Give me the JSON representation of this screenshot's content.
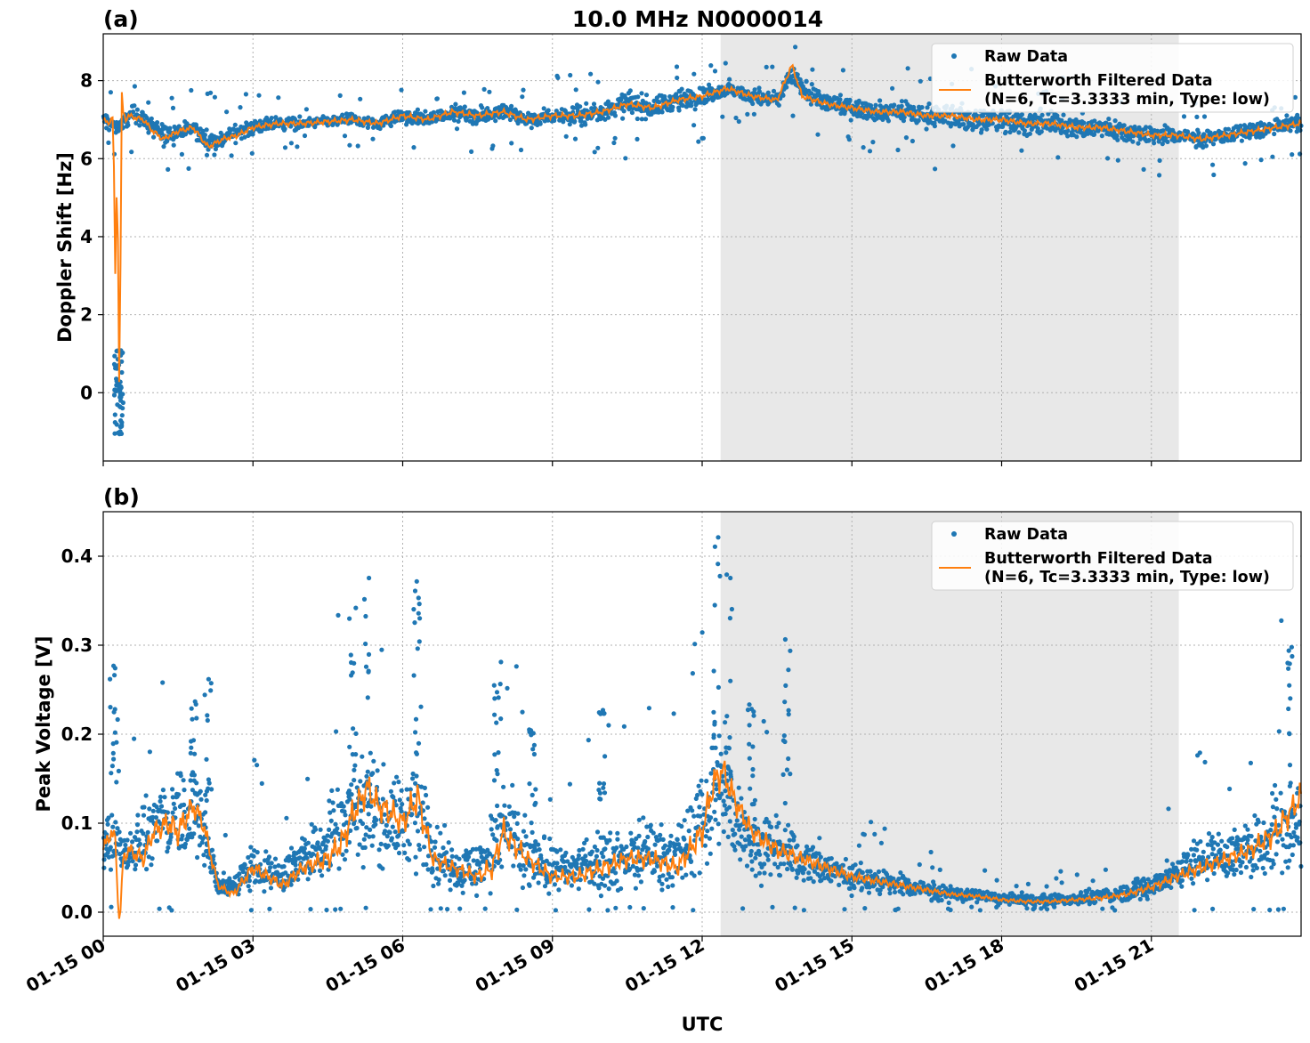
{
  "figure": {
    "title": "10.0 MHz N0000014",
    "xlabel": "UTC"
  },
  "colors": {
    "raw": "#1f77b4",
    "filtered": "#ff7f0e",
    "night_shade": "#e8e8e8"
  },
  "x_ticks": [
    "01-15 00",
    "01-15 03",
    "01-15 06",
    "01-15 09",
    "01-15 12",
    "01-15 15",
    "01-15 18",
    "01-15 21"
  ],
  "chart_data": [
    {
      "type": "scatter",
      "panel_label": "(a)",
      "ylabel": "Doppler Shift [Hz]",
      "xlim_hours": [
        0,
        24
      ],
      "ylim": [
        -1.75,
        9.2
      ],
      "yticks": [
        0,
        2,
        4,
        6,
        8
      ],
      "shaded_interval_hours": [
        12.37,
        21.55
      ],
      "legend": {
        "position": "top-right",
        "raw_label": "Raw Data",
        "filtered_label_line1": "Butterworth Filtered Data",
        "filtered_label_line2": "(N=6, Tc=3.3333 min, Type: low)"
      },
      "series": [
        {
          "name": "Raw Data",
          "style": "points",
          "x_hours": [
            0,
            0.3,
            0.6,
            0.9,
            1.2,
            1.5,
            1.8,
            2.1,
            2.4,
            2.7,
            3.0,
            3.5,
            4.0,
            4.5,
            5.0,
            5.5,
            6.0,
            6.5,
            7.0,
            7.5,
            8.0,
            8.5,
            9.0,
            9.5,
            10.0,
            10.5,
            11.0,
            11.5,
            12.0,
            12.5,
            13.0,
            13.5,
            13.8,
            14.0,
            14.5,
            15.0,
            15.5,
            16.0,
            16.5,
            17.0,
            17.5,
            18.0,
            18.5,
            19.0,
            19.5,
            20.0,
            20.5,
            21.0,
            21.5,
            22.0,
            22.5,
            23.0,
            23.5,
            24.0
          ],
          "y": [
            7.0,
            6.8,
            7.2,
            6.9,
            6.6,
            6.7,
            6.8,
            6.4,
            6.5,
            6.7,
            6.8,
            6.9,
            6.9,
            6.95,
            7.0,
            6.9,
            7.1,
            7.0,
            7.2,
            7.1,
            7.2,
            7.0,
            7.1,
            7.1,
            7.2,
            7.4,
            7.3,
            7.5,
            7.6,
            7.8,
            7.6,
            7.5,
            8.2,
            7.8,
            7.4,
            7.3,
            7.2,
            7.2,
            7.1,
            7.1,
            7.0,
            7.0,
            6.9,
            6.9,
            6.8,
            6.8,
            6.7,
            6.6,
            6.6,
            6.5,
            6.6,
            6.7,
            6.8,
            6.9
          ],
          "spread": [
            0.3,
            0.3,
            0.3,
            0.35,
            0.4,
            0.35,
            0.3,
            0.4,
            0.35,
            0.3,
            0.25,
            0.25,
            0.2,
            0.2,
            0.2,
            0.2,
            0.25,
            0.25,
            0.25,
            0.3,
            0.3,
            0.3,
            0.3,
            0.35,
            0.4,
            0.45,
            0.4,
            0.35,
            0.35,
            0.3,
            0.3,
            0.3,
            0.4,
            0.35,
            0.35,
            0.35,
            0.35,
            0.35,
            0.4,
            0.45,
            0.45,
            0.45,
            0.45,
            0.45,
            0.4,
            0.4,
            0.35,
            0.35,
            0.3,
            0.3,
            0.3,
            0.3,
            0.3,
            0.3
          ]
        },
        {
          "name": "Butterworth Filtered Data",
          "style": "line",
          "x_hours": [
            0,
            0.1,
            0.2,
            0.25,
            0.28,
            0.31,
            0.34,
            0.37,
            0.4,
            0.45,
            0.5,
            0.8,
            1.0,
            1.2,
            1.5,
            1.8,
            2.1,
            2.4,
            2.7,
            3.0,
            3.5,
            4.0,
            4.5,
            5.0,
            5.5,
            6.0,
            6.5,
            7.0,
            7.5,
            8.0,
            8.5,
            9.0,
            9.5,
            10.0,
            10.5,
            11.0,
            11.5,
            12.0,
            12.5,
            13.0,
            13.5,
            13.8,
            14.0,
            14.5,
            15.0,
            15.5,
            16.0,
            16.5,
            17.0,
            17.5,
            18.0,
            18.5,
            19.0,
            19.5,
            20.0,
            20.5,
            21.0,
            21.5,
            22.0,
            22.5,
            23.0,
            23.5,
            24.0
          ],
          "y": [
            7.0,
            6.9,
            7.1,
            2.0,
            7.5,
            -0.5,
            2.0,
            7.7,
            7.2,
            7.0,
            7.1,
            7.0,
            6.7,
            6.5,
            6.7,
            6.8,
            6.3,
            6.5,
            6.6,
            6.8,
            6.9,
            6.9,
            6.95,
            7.0,
            6.9,
            7.1,
            7.0,
            7.2,
            7.1,
            7.2,
            7.0,
            7.1,
            7.1,
            7.2,
            7.4,
            7.3,
            7.5,
            7.6,
            7.8,
            7.6,
            7.5,
            8.4,
            7.6,
            7.4,
            7.3,
            7.2,
            7.2,
            7.1,
            7.1,
            7.0,
            7.0,
            6.9,
            6.9,
            6.8,
            6.8,
            6.7,
            6.6,
            6.6,
            6.5,
            6.6,
            6.7,
            6.8,
            6.9
          ]
        }
      ]
    },
    {
      "type": "scatter",
      "panel_label": "(b)",
      "ylabel": "Peak Voltage [V]",
      "xlim_hours": [
        0,
        24
      ],
      "ylim": [
        -0.027,
        0.45
      ],
      "yticks": [
        0.0,
        0.1,
        0.2,
        0.3,
        0.4
      ],
      "shaded_interval_hours": [
        12.37,
        21.55
      ],
      "legend": {
        "position": "top-right",
        "raw_label": "Raw Data",
        "filtered_label_line1": "Butterworth Filtered Data",
        "filtered_label_line2": "(N=6, Tc=3.3333 min, Type: low)"
      },
      "series": [
        {
          "name": "Raw Data",
          "style": "points",
          "x_hours": [
            0,
            0.5,
            1.0,
            1.5,
            2.0,
            2.3,
            2.6,
            3.0,
            3.5,
            4.0,
            4.5,
            5.0,
            5.5,
            6.0,
            6.3,
            6.6,
            7.0,
            7.5,
            8.0,
            8.5,
            9.0,
            9.5,
            10.0,
            10.5,
            11.0,
            11.5,
            12.0,
            12.3,
            12.7,
            13.0,
            13.5,
            14.0,
            14.5,
            15.0,
            15.5,
            16.0,
            16.5,
            17.0,
            17.5,
            18.0,
            18.5,
            19.0,
            19.5,
            20.0,
            20.5,
            21.0,
            21.5,
            22.0,
            22.5,
            23.0,
            23.5,
            24.0
          ],
          "y": [
            0.08,
            0.07,
            0.09,
            0.12,
            0.1,
            0.03,
            0.03,
            0.05,
            0.04,
            0.06,
            0.08,
            0.12,
            0.11,
            0.1,
            0.12,
            0.07,
            0.05,
            0.05,
            0.09,
            0.06,
            0.05,
            0.05,
            0.06,
            0.06,
            0.07,
            0.06,
            0.1,
            0.14,
            0.1,
            0.08,
            0.07,
            0.06,
            0.05,
            0.04,
            0.035,
            0.03,
            0.025,
            0.02,
            0.018,
            0.015,
            0.013,
            0.013,
            0.015,
            0.018,
            0.022,
            0.03,
            0.045,
            0.06,
            0.065,
            0.07,
            0.09,
            0.1
          ],
          "spread": [
            0.05,
            0.04,
            0.06,
            0.08,
            0.06,
            0.02,
            0.02,
            0.04,
            0.03,
            0.04,
            0.06,
            0.09,
            0.08,
            0.07,
            0.1,
            0.05,
            0.04,
            0.04,
            0.08,
            0.05,
            0.04,
            0.04,
            0.05,
            0.05,
            0.05,
            0.05,
            0.08,
            0.1,
            0.07,
            0.05,
            0.05,
            0.04,
            0.03,
            0.025,
            0.02,
            0.018,
            0.015,
            0.012,
            0.01,
            0.01,
            0.01,
            0.01,
            0.01,
            0.012,
            0.015,
            0.02,
            0.03,
            0.04,
            0.04,
            0.05,
            0.07,
            0.08
          ]
        },
        {
          "name": "Butterworth Filtered Data",
          "style": "line",
          "x_hours": [
            0,
            0.15,
            0.25,
            0.3,
            0.35,
            0.4,
            0.5,
            0.8,
            1.0,
            1.3,
            1.5,
            1.8,
            2.0,
            2.3,
            2.6,
            3.0,
            3.3,
            3.6,
            4.0,
            4.5,
            4.8,
            5.0,
            5.3,
            5.5,
            5.8,
            6.0,
            6.3,
            6.6,
            7.0,
            7.5,
            7.8,
            8.0,
            8.5,
            9.0,
            9.5,
            10.0,
            10.5,
            11.0,
            11.5,
            12.0,
            12.2,
            12.4,
            12.7,
            13.0,
            13.5,
            14.0,
            14.5,
            15.0,
            15.5,
            16.0,
            16.5,
            17.0,
            17.5,
            18.0,
            18.5,
            19.0,
            19.5,
            20.0,
            20.5,
            21.0,
            21.5,
            22.0,
            22.5,
            23.0,
            23.5,
            24.0
          ],
          "y": [
            0.07,
            0.09,
            0.08,
            0.0,
            0.0,
            0.06,
            0.07,
            0.06,
            0.09,
            0.1,
            0.09,
            0.12,
            0.1,
            0.03,
            0.02,
            0.05,
            0.04,
            0.03,
            0.05,
            0.06,
            0.08,
            0.11,
            0.14,
            0.12,
            0.11,
            0.1,
            0.13,
            0.06,
            0.05,
            0.04,
            0.05,
            0.09,
            0.06,
            0.04,
            0.04,
            0.05,
            0.06,
            0.06,
            0.05,
            0.09,
            0.14,
            0.16,
            0.12,
            0.09,
            0.07,
            0.06,
            0.05,
            0.04,
            0.035,
            0.03,
            0.025,
            0.02,
            0.018,
            0.014,
            0.012,
            0.012,
            0.014,
            0.016,
            0.02,
            0.028,
            0.04,
            0.05,
            0.06,
            0.07,
            0.09,
            0.13
          ]
        }
      ]
    }
  ]
}
